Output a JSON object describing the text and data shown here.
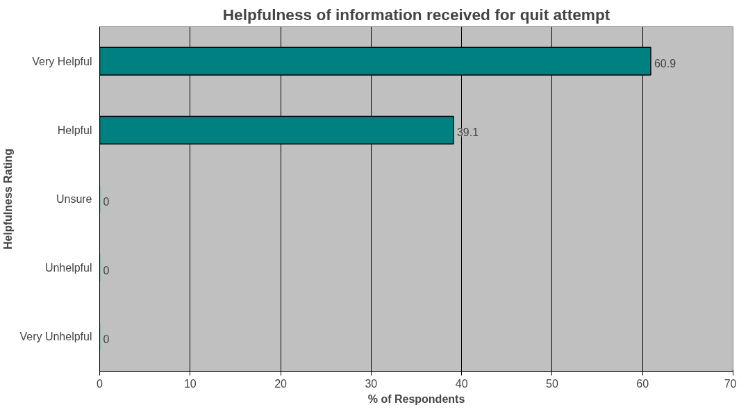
{
  "chart_data": {
    "type": "bar",
    "orientation": "horizontal",
    "title": "Helpfulness of information received for quit attempt",
    "xlabel": "% of Respondents",
    "ylabel": "Helpfulness Rating",
    "categories": [
      "Very Helpful",
      "Helpful",
      "Unsure",
      "Unhelpful",
      "Very Unhelpful"
    ],
    "values": [
      60.9,
      39.1,
      0,
      0,
      0
    ],
    "color": "#008080",
    "data_labels": true,
    "xlim": [
      0,
      70
    ],
    "xticks": [
      0,
      10,
      20,
      30,
      40,
      50,
      60,
      70
    ],
    "grid": "x"
  }
}
